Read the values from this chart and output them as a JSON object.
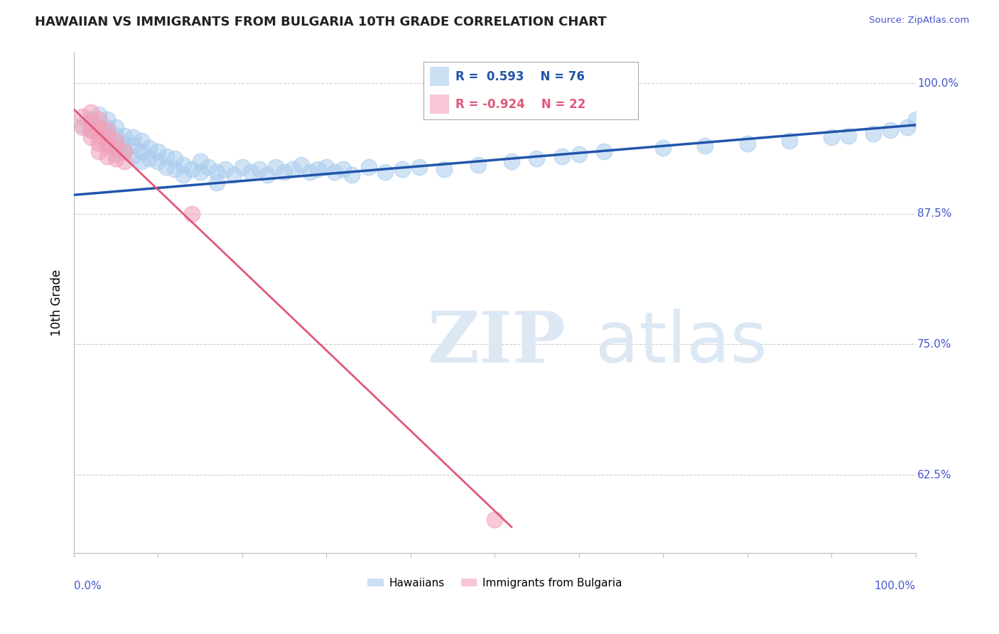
{
  "title": "HAWAIIAN VS IMMIGRANTS FROM BULGARIA 10TH GRADE CORRELATION CHART",
  "source_text": "Source: ZipAtlas.com",
  "ylabel": "10th Grade",
  "watermark": "ZIPatlas",
  "legend_blue_label": "Hawaiians",
  "legend_pink_label": "Immigrants from Bulgaria",
  "R_blue": 0.593,
  "N_blue": 76,
  "R_pink": -0.924,
  "N_pink": 22,
  "blue_color": "#aaccee",
  "pink_color": "#f4a0b8",
  "blue_line_color": "#2255aa",
  "pink_line_color": "#e05878",
  "title_color": "#222222",
  "axis_label_color": "#4455cc",
  "grid_color": "#cccccc",
  "watermark_color": "#dde8f5",
  "xlim": [
    0.0,
    1.0
  ],
  "ylim": [
    0.55,
    1.03
  ],
  "yticks": [
    0.625,
    0.75,
    0.875,
    1.0
  ],
  "ytick_labels": [
    "62.5%",
    "75.0%",
    "87.5%",
    "100.0%"
  ],
  "xticks": [
    0.0,
    0.1,
    0.2,
    0.3,
    0.4,
    0.5,
    0.6,
    0.7,
    0.8,
    0.9,
    1.0
  ],
  "blue_line_x0": 0.0,
  "blue_line_x1": 1.0,
  "blue_line_y0": 0.893,
  "blue_line_y1": 0.96,
  "pink_line_x0": 0.0,
  "pink_line_x1": 0.52,
  "pink_line_y0": 0.975,
  "pink_line_y1": 0.575,
  "blue_dots_x": [
    0.01,
    0.02,
    0.02,
    0.03,
    0.03,
    0.03,
    0.04,
    0.04,
    0.04,
    0.04,
    0.05,
    0.05,
    0.05,
    0.05,
    0.06,
    0.06,
    0.06,
    0.07,
    0.07,
    0.07,
    0.08,
    0.08,
    0.08,
    0.09,
    0.09,
    0.1,
    0.1,
    0.11,
    0.11,
    0.12,
    0.12,
    0.13,
    0.13,
    0.14,
    0.15,
    0.15,
    0.16,
    0.17,
    0.17,
    0.18,
    0.19,
    0.2,
    0.21,
    0.22,
    0.23,
    0.24,
    0.25,
    0.26,
    0.27,
    0.28,
    0.29,
    0.3,
    0.31,
    0.32,
    0.33,
    0.35,
    0.37,
    0.39,
    0.41,
    0.44,
    0.48,
    0.52,
    0.55,
    0.58,
    0.6,
    0.63,
    0.7,
    0.75,
    0.8,
    0.85,
    0.9,
    0.92,
    0.95,
    0.97,
    0.99,
    1.0
  ],
  "blue_dots_y": [
    0.96,
    0.965,
    0.955,
    0.97,
    0.958,
    0.95,
    0.965,
    0.958,
    0.95,
    0.942,
    0.958,
    0.95,
    0.94,
    0.932,
    0.95,
    0.942,
    0.935,
    0.948,
    0.94,
    0.93,
    0.945,
    0.935,
    0.925,
    0.938,
    0.928,
    0.935,
    0.925,
    0.93,
    0.92,
    0.928,
    0.918,
    0.922,
    0.912,
    0.918,
    0.925,
    0.915,
    0.92,
    0.915,
    0.905,
    0.918,
    0.912,
    0.92,
    0.915,
    0.918,
    0.912,
    0.92,
    0.915,
    0.918,
    0.922,
    0.915,
    0.918,
    0.92,
    0.915,
    0.918,
    0.912,
    0.92,
    0.915,
    0.918,
    0.92,
    0.918,
    0.922,
    0.925,
    0.928,
    0.93,
    0.932,
    0.935,
    0.938,
    0.94,
    0.942,
    0.945,
    0.948,
    0.95,
    0.952,
    0.955,
    0.958,
    0.965
  ],
  "pink_dots_x": [
    0.01,
    0.01,
    0.02,
    0.02,
    0.02,
    0.02,
    0.03,
    0.03,
    0.03,
    0.03,
    0.03,
    0.04,
    0.04,
    0.04,
    0.04,
    0.05,
    0.05,
    0.05,
    0.06,
    0.06,
    0.14,
    0.5
  ],
  "pink_dots_y": [
    0.968,
    0.958,
    0.972,
    0.962,
    0.955,
    0.948,
    0.965,
    0.958,
    0.95,
    0.942,
    0.935,
    0.955,
    0.948,
    0.94,
    0.93,
    0.945,
    0.938,
    0.928,
    0.935,
    0.925,
    0.875,
    0.582
  ]
}
